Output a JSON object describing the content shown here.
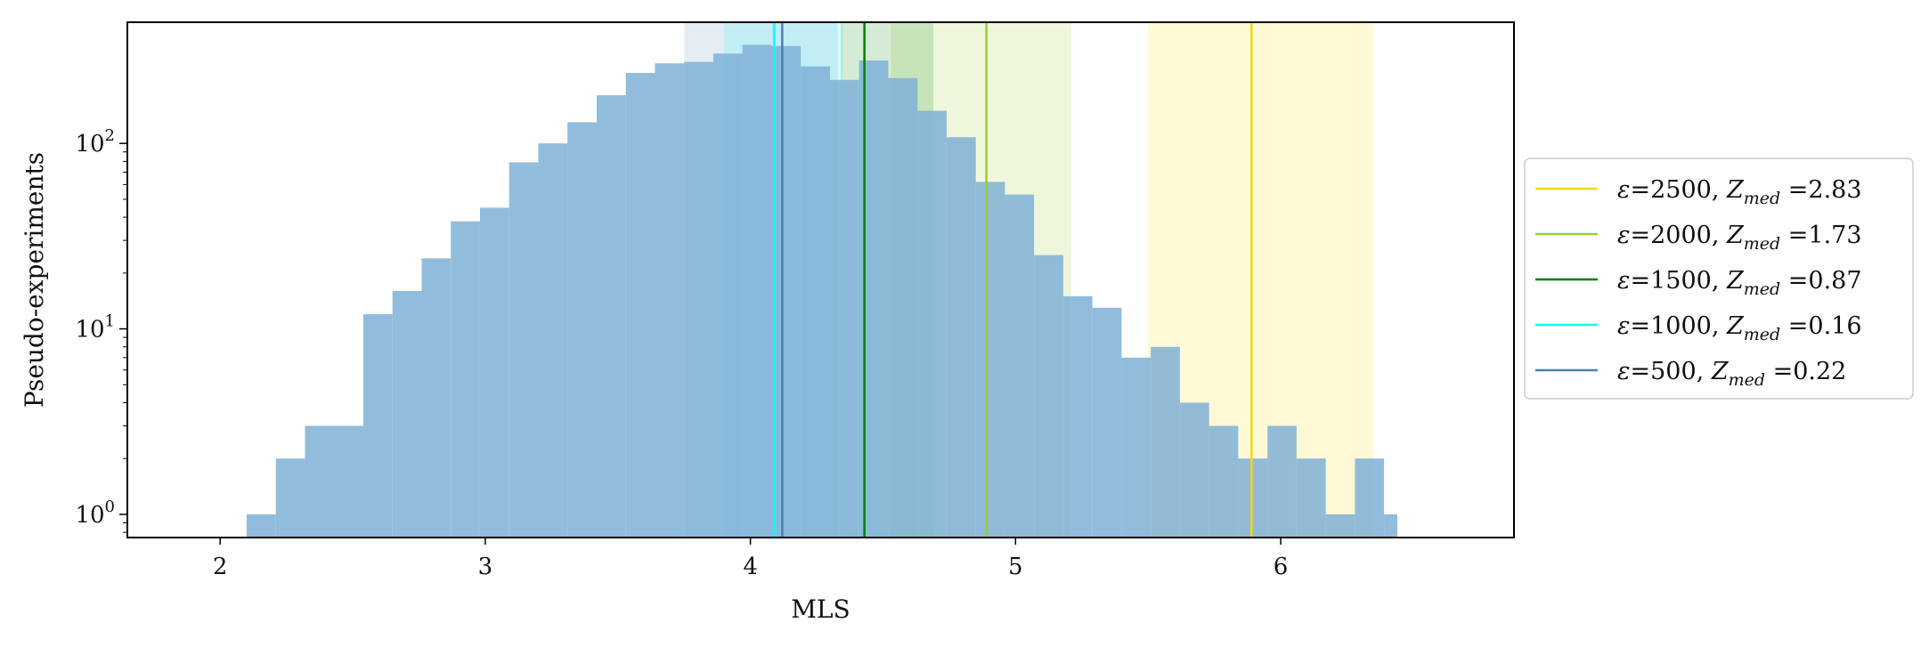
{
  "chart_data": {
    "type": "bar",
    "xlabel": "MLS",
    "ylabel": "Pseudo-experiments",
    "yscale": "log",
    "xlim": [
      1.65,
      6.88
    ],
    "ylim": [
      0.75,
      450
    ],
    "xticks": [
      2,
      3,
      4,
      5,
      6
    ],
    "yticks": [
      {
        "value": 1,
        "base": "10",
        "exp": "0"
      },
      {
        "value": 10,
        "base": "10",
        "exp": "1"
      },
      {
        "value": 100,
        "base": "10",
        "exp": "2"
      }
    ],
    "histogram": {
      "color": "#7fb0d6",
      "bins": [
        {
          "x0": 2.1,
          "x1": 2.21,
          "count": 1
        },
        {
          "x0": 2.21,
          "x1": 2.32,
          "count": 2
        },
        {
          "x0": 2.32,
          "x1": 2.54,
          "count": 3
        },
        {
          "x0": 2.54,
          "x1": 2.65,
          "count": 12
        },
        {
          "x0": 2.65,
          "x1": 2.76,
          "count": 16
        },
        {
          "x0": 2.76,
          "x1": 2.87,
          "count": 24
        },
        {
          "x0": 2.87,
          "x1": 2.98,
          "count": 38
        },
        {
          "x0": 2.98,
          "x1": 3.09,
          "count": 45
        },
        {
          "x0": 3.09,
          "x1": 3.2,
          "count": 79
        },
        {
          "x0": 3.2,
          "x1": 3.31,
          "count": 100
        },
        {
          "x0": 3.31,
          "x1": 3.42,
          "count": 130
        },
        {
          "x0": 3.42,
          "x1": 3.53,
          "count": 182
        },
        {
          "x0": 3.53,
          "x1": 3.64,
          "count": 240
        },
        {
          "x0": 3.64,
          "x1": 3.75,
          "count": 270
        },
        {
          "x0": 3.75,
          "x1": 3.86,
          "count": 275
        },
        {
          "x0": 3.86,
          "x1": 3.97,
          "count": 305
        },
        {
          "x0": 3.97,
          "x1": 4.08,
          "count": 340
        },
        {
          "x0": 4.08,
          "x1": 4.19,
          "count": 335
        },
        {
          "x0": 4.19,
          "x1": 4.3,
          "count": 260
        },
        {
          "x0": 4.3,
          "x1": 4.41,
          "count": 220
        },
        {
          "x0": 4.41,
          "x1": 4.52,
          "count": 280
        },
        {
          "x0": 4.52,
          "x1": 4.63,
          "count": 225
        },
        {
          "x0": 4.63,
          "x1": 4.74,
          "count": 150
        },
        {
          "x0": 4.74,
          "x1": 4.85,
          "count": 108
        },
        {
          "x0": 4.85,
          "x1": 4.96,
          "count": 62
        },
        {
          "x0": 4.96,
          "x1": 5.07,
          "count": 53
        },
        {
          "x0": 5.07,
          "x1": 5.18,
          "count": 25
        },
        {
          "x0": 5.18,
          "x1": 5.29,
          "count": 15
        },
        {
          "x0": 5.29,
          "x1": 5.4,
          "count": 13
        },
        {
          "x0": 5.4,
          "x1": 5.51,
          "count": 7
        },
        {
          "x0": 5.51,
          "x1": 5.62,
          "count": 8
        },
        {
          "x0": 5.62,
          "x1": 5.73,
          "count": 4
        },
        {
          "x0": 5.73,
          "x1": 5.84,
          "count": 3
        },
        {
          "x0": 5.84,
          "x1": 5.95,
          "count": 2
        },
        {
          "x0": 5.95,
          "x1": 6.06,
          "count": 3
        },
        {
          "x0": 6.06,
          "x1": 6.17,
          "count": 2
        },
        {
          "x0": 6.17,
          "x1": 6.28,
          "count": 1
        },
        {
          "x0": 6.28,
          "x1": 6.39,
          "count": 2
        },
        {
          "x0": 6.39,
          "x1": 6.44,
          "count": 1
        }
      ]
    },
    "series": [
      {
        "epsilon": "2500",
        "zmed": "2.83",
        "color": "#ffd700",
        "median": 5.89,
        "band": [
          5.5,
          6.35
        ]
      },
      {
        "epsilon": "2000",
        "zmed": "1.73",
        "color": "#9acd32",
        "median": 4.89,
        "band": [
          4.53,
          5.21
        ]
      },
      {
        "epsilon": "1500",
        "zmed": "0.87",
        "color": "#008000",
        "median": 4.43,
        "band": [
          4.34,
          4.69
        ]
      },
      {
        "epsilon": "1000",
        "zmed": "0.16",
        "color": "#00ffff",
        "median": 4.09,
        "band": [
          3.9,
          4.35
        ]
      },
      {
        "epsilon": "500",
        "zmed": "0.22",
        "color": "#4682b4",
        "median": 4.12,
        "band": [
          3.75,
          4.33
        ]
      }
    ],
    "legend": {
      "placement": "right"
    },
    "legend_symbols": {
      "epsilon": "ε",
      "eq": "=",
      "sep": ", ",
      "z": "Z",
      "sub": "med"
    }
  }
}
